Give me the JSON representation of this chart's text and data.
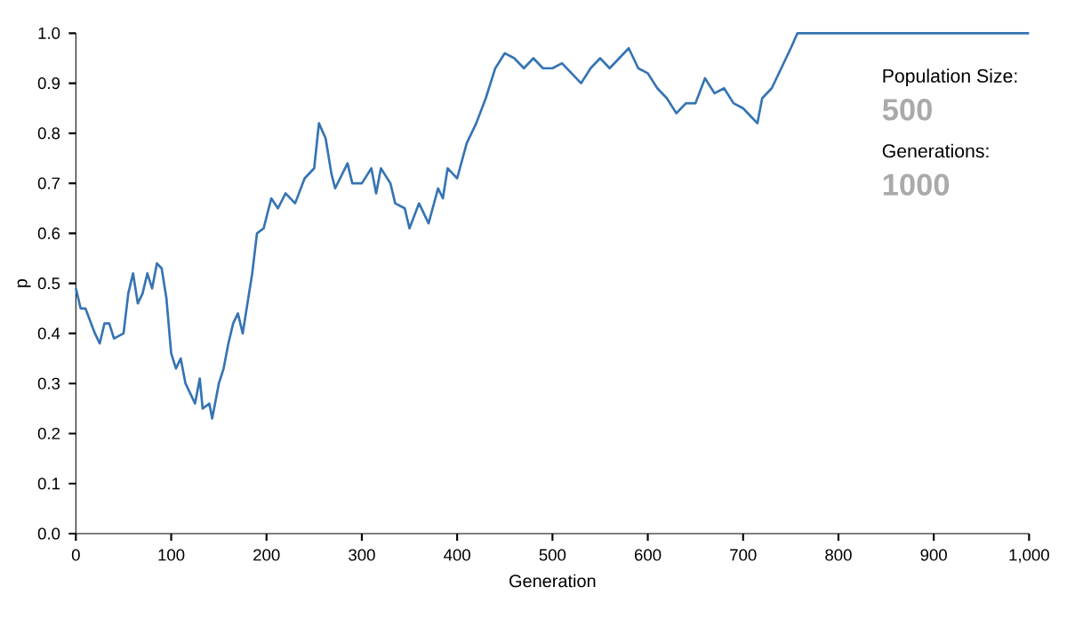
{
  "chart_data": {
    "type": "line",
    "xlabel": "Generation",
    "ylabel": "p",
    "x": [
      0,
      5,
      10,
      20,
      25,
      30,
      35,
      40,
      50,
      55,
      60,
      65,
      70,
      75,
      80,
      85,
      90,
      95,
      100,
      105,
      110,
      115,
      120,
      125,
      130,
      133,
      140,
      143,
      150,
      155,
      160,
      165,
      170,
      175,
      185,
      190,
      197,
      205,
      212,
      220,
      230,
      240,
      250,
      255,
      262,
      268,
      272,
      285,
      290,
      300,
      310,
      315,
      320,
      330,
      335,
      345,
      350,
      360,
      370,
      380,
      385,
      390,
      400,
      410,
      420,
      430,
      440,
      450,
      460,
      470,
      480,
      490,
      500,
      510,
      520,
      530,
      540,
      550,
      560,
      570,
      580,
      590,
      600,
      610,
      620,
      630,
      640,
      650,
      660,
      670,
      680,
      690,
      700,
      710,
      715,
      720,
      730,
      740,
      750,
      757,
      1000
    ],
    "series": [
      {
        "color": "#3674b3",
        "values": [
          0.49,
          0.45,
          0.45,
          0.4,
          0.38,
          0.42,
          0.42,
          0.39,
          0.4,
          0.48,
          0.52,
          0.46,
          0.48,
          0.52,
          0.49,
          0.54,
          0.53,
          0.47,
          0.36,
          0.33,
          0.35,
          0.3,
          0.28,
          0.26,
          0.31,
          0.25,
          0.26,
          0.23,
          0.3,
          0.33,
          0.38,
          0.42,
          0.44,
          0.4,
          0.52,
          0.6,
          0.61,
          0.67,
          0.65,
          0.68,
          0.66,
          0.71,
          0.73,
          0.82,
          0.79,
          0.72,
          0.69,
          0.74,
          0.7,
          0.7,
          0.73,
          0.68,
          0.73,
          0.7,
          0.66,
          0.65,
          0.61,
          0.66,
          0.62,
          0.69,
          0.67,
          0.73,
          0.71,
          0.78,
          0.82,
          0.87,
          0.93,
          0.96,
          0.95,
          0.93,
          0.95,
          0.93,
          0.93,
          0.94,
          0.92,
          0.9,
          0.93,
          0.95,
          0.93,
          0.95,
          0.97,
          0.93,
          0.92,
          0.89,
          0.87,
          0.84,
          0.86,
          0.86,
          0.91,
          0.88,
          0.89,
          0.86,
          0.85,
          0.83,
          0.82,
          0.87,
          0.89,
          0.93,
          0.97,
          1.0,
          1.0
        ]
      }
    ],
    "xlim": [
      0,
      1000
    ],
    "xticks": [
      0,
      100,
      200,
      300,
      400,
      500,
      600,
      700,
      800,
      900,
      {
        "value": 1000,
        "label": "1,000"
      }
    ],
    "ylim": [
      0,
      1.0
    ],
    "yticks": [
      {
        "value": 0,
        "label": "0.0"
      },
      {
        "value": 0.1,
        "label": "0.1"
      },
      {
        "value": 0.2,
        "label": "0.2"
      },
      {
        "value": 0.3,
        "label": "0.3"
      },
      {
        "value": 0.4,
        "label": "0.4"
      },
      {
        "value": 0.5,
        "label": "0.5"
      },
      {
        "value": 0.6,
        "label": "0.6"
      },
      {
        "value": 0.7,
        "label": "0.7"
      },
      {
        "value": 0.8,
        "label": "0.8"
      },
      {
        "value": 0.9,
        "label": "0.9"
      },
      {
        "value": 1.0,
        "label": "1.0"
      }
    ],
    "grid": false,
    "marker": "none",
    "line_style": "solid",
    "annotations": [
      "Population Size:",
      "500",
      "Generations:",
      "1000"
    ]
  }
}
